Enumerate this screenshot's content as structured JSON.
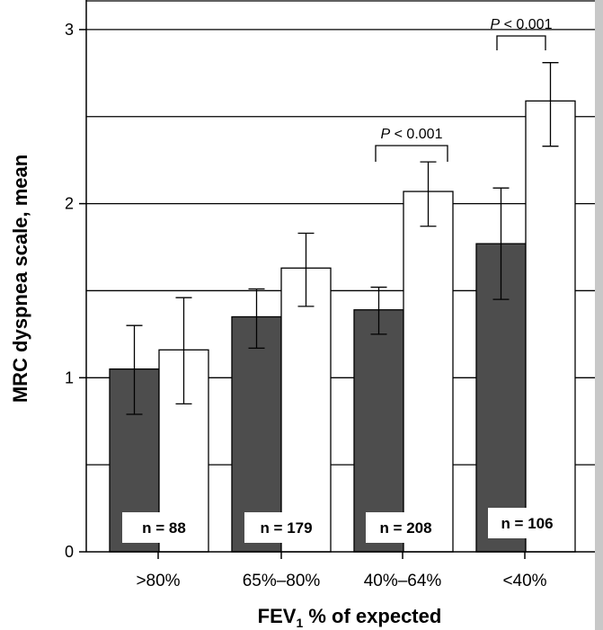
{
  "chart_data": {
    "type": "bar",
    "xlabel": "FEV",
    "xlabel_sub": "1",
    "xlabel_rest": " % of expected",
    "ylabel": "MRC dyspnea scale, mean",
    "ylim": [
      0,
      3
    ],
    "yticks": [
      "0",
      "1",
      "2",
      "3"
    ],
    "grid": true,
    "categories": [
      ">80%",
      "65%–80%",
      "40%–64%",
      "<40%"
    ],
    "series": [
      {
        "color": "#4d4d4d",
        "values": [
          1.05,
          1.35,
          1.39,
          1.77
        ],
        "err_low": [
          0.79,
          1.17,
          1.25,
          1.45
        ],
        "err_high": [
          1.3,
          1.51,
          1.52,
          2.09
        ]
      },
      {
        "color": "#ffffff",
        "values": [
          1.16,
          1.63,
          2.07,
          2.59
        ],
        "err_low": [
          0.85,
          1.41,
          1.87,
          2.33
        ],
        "err_high": [
          1.46,
          1.83,
          2.24,
          2.81
        ]
      }
    ],
    "n_labels": [
      "n =  88",
      "n =  179",
      "n = 208",
      "n = 106"
    ],
    "annotations": [
      {
        "category_index": 2,
        "label_italic": "P",
        "label_rest": " < 0.001"
      },
      {
        "category_index": 3,
        "label_italic": "P",
        "label_rest": " < 0.001"
      }
    ]
  }
}
